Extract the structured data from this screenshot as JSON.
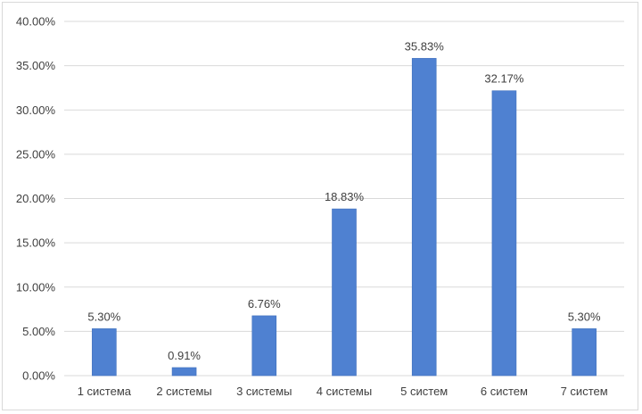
{
  "chart_data": {
    "type": "bar",
    "title": "",
    "xlabel": "",
    "ylabel": "",
    "categories": [
      "1 система",
      "2 системы",
      "3 системы",
      "4 системы",
      "5 систем",
      "6 систем",
      "7 систем"
    ],
    "values": [
      5.3,
      0.91,
      6.76,
      18.83,
      35.83,
      32.17,
      5.3
    ],
    "data_labels": [
      "5.30%",
      "0.91%",
      "6.76%",
      "18.83%",
      "35.83%",
      "32.17%",
      "5.30%"
    ],
    "ylim": [
      0,
      40
    ],
    "yticks": [
      0,
      5,
      10,
      15,
      20,
      25,
      30,
      35,
      40
    ],
    "ytick_labels": [
      "0.00%",
      "5.00%",
      "10.00%",
      "15.00%",
      "20.00%",
      "25.00%",
      "30.00%",
      "35.00%",
      "40.00%"
    ],
    "grid": true,
    "legend": "none",
    "colors": {
      "bar": "#4f81d1",
      "bar_edge": "#3f6fbd",
      "grid": "#d9d9d9",
      "text": "#404040"
    }
  }
}
